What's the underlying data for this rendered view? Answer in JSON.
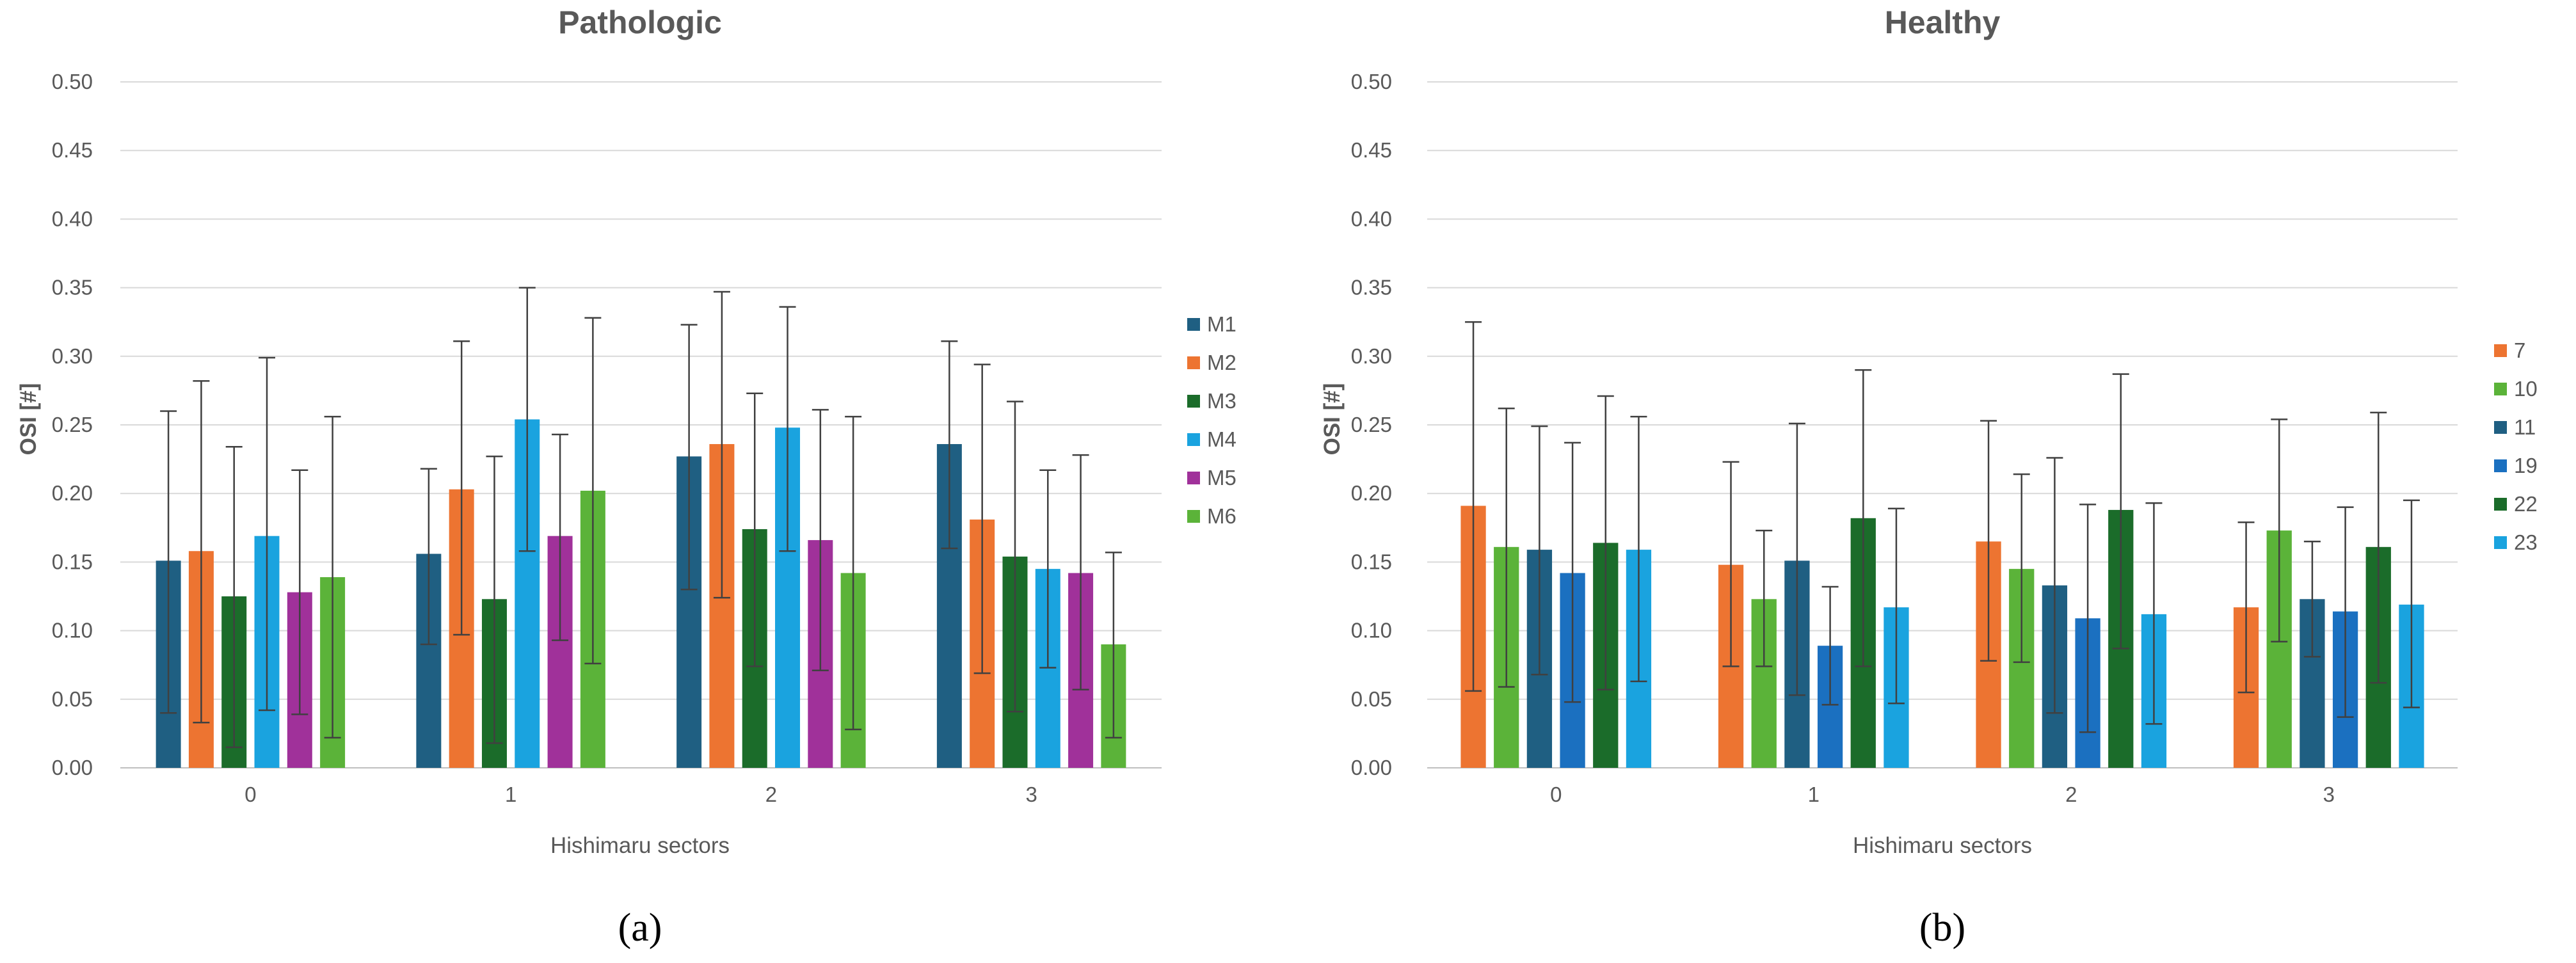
{
  "chart_data": [
    {
      "type": "bar",
      "title": "Pathologic",
      "xlabel": "Hishimaru sectors",
      "ylabel": "OSI [#]",
      "caption": "(a)",
      "ylim": [
        0,
        0.5
      ],
      "yticks": [
        "0.00",
        "0.05",
        "0.10",
        "0.15",
        "0.20",
        "0.25",
        "0.30",
        "0.35",
        "0.40",
        "0.45",
        "0.50"
      ],
      "categories": [
        "0",
        "1",
        "2",
        "3"
      ],
      "legend_position": "right",
      "series": [
        {
          "name": "M1",
          "color": "#1f5f82",
          "values": [
            0.151,
            0.156,
            0.227,
            0.236
          ],
          "err_low": [
            0.04,
            0.09,
            0.13,
            0.16
          ],
          "err_high": [
            0.26,
            0.218,
            0.323,
            0.311
          ]
        },
        {
          "name": "M2",
          "color": "#ed7431",
          "values": [
            0.158,
            0.203,
            0.236,
            0.181
          ],
          "err_low": [
            0.033,
            0.097,
            0.124,
            0.069
          ],
          "err_high": [
            0.282,
            0.311,
            0.347,
            0.294
          ]
        },
        {
          "name": "M3",
          "color": "#1b6c2a",
          "values": [
            0.125,
            0.123,
            0.174,
            0.154
          ],
          "err_low": [
            0.015,
            0.018,
            0.074,
            0.041
          ],
          "err_high": [
            0.234,
            0.227,
            0.273,
            0.267
          ]
        },
        {
          "name": "M4",
          "color": "#1aa3df",
          "values": [
            0.169,
            0.254,
            0.248,
            0.145
          ],
          "err_low": [
            0.042,
            0.158,
            0.158,
            0.073
          ],
          "err_high": [
            0.299,
            0.35,
            0.336,
            0.217
          ]
        },
        {
          "name": "M5",
          "color": "#a0319a",
          "values": [
            0.128,
            0.169,
            0.166,
            0.142
          ],
          "err_low": [
            0.039,
            0.093,
            0.071,
            0.057
          ],
          "err_high": [
            0.217,
            0.243,
            0.261,
            0.228
          ]
        },
        {
          "name": "M6",
          "color": "#5bb339",
          "values": [
            0.139,
            0.202,
            0.142,
            0.09
          ],
          "err_low": [
            0.022,
            0.076,
            0.028,
            0.022
          ],
          "err_high": [
            0.256,
            0.328,
            0.256,
            0.157
          ]
        }
      ]
    },
    {
      "type": "bar",
      "title": "Healthy",
      "xlabel": "Hishimaru sectors",
      "ylabel": "OSI [#]",
      "caption": "(b)",
      "ylim": [
        0,
        0.5
      ],
      "yticks": [
        "0.00",
        "0.05",
        "0.10",
        "0.15",
        "0.20",
        "0.25",
        "0.30",
        "0.35",
        "0.40",
        "0.45",
        "0.50"
      ],
      "categories": [
        "0",
        "1",
        "2",
        "3"
      ],
      "legend_position": "right",
      "series": [
        {
          "name": "7",
          "color": "#ed7431",
          "values": [
            0.191,
            0.148,
            0.165,
            0.117
          ],
          "err_low": [
            0.056,
            0.074,
            0.078,
            0.055
          ],
          "err_high": [
            0.325,
            0.223,
            0.253,
            0.179
          ]
        },
        {
          "name": "10",
          "color": "#5bb339",
          "values": [
            0.161,
            0.123,
            0.145,
            0.173
          ],
          "err_low": [
            0.059,
            0.074,
            0.077,
            0.092
          ],
          "err_high": [
            0.262,
            0.173,
            0.214,
            0.254
          ]
        },
        {
          "name": "11",
          "color": "#1f5f82",
          "values": [
            0.159,
            0.151,
            0.133,
            0.123
          ],
          "err_low": [
            0.068,
            0.053,
            0.04,
            0.081
          ],
          "err_high": [
            0.249,
            0.251,
            0.226,
            0.165
          ]
        },
        {
          "name": "19",
          "color": "#1b70c0",
          "values": [
            0.142,
            0.089,
            0.109,
            0.114
          ],
          "err_low": [
            0.048,
            0.046,
            0.026,
            0.037
          ],
          "err_high": [
            0.237,
            0.132,
            0.192,
            0.19
          ]
        },
        {
          "name": "22",
          "color": "#1b6c2a",
          "values": [
            0.164,
            0.182,
            0.188,
            0.161
          ],
          "err_low": [
            0.057,
            0.074,
            0.087,
            0.062
          ],
          "err_high": [
            0.271,
            0.29,
            0.287,
            0.259
          ]
        },
        {
          "name": "23",
          "color": "#1aa3df",
          "values": [
            0.159,
            0.117,
            0.112,
            0.119
          ],
          "err_low": [
            0.063,
            0.047,
            0.032,
            0.044
          ],
          "err_high": [
            0.256,
            0.189,
            0.193,
            0.195
          ]
        }
      ]
    }
  ]
}
